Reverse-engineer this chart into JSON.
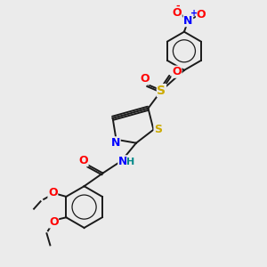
{
  "background_color": "#ebebeb",
  "fig_size": [
    3.0,
    3.0
  ],
  "dpi": 100,
  "atom_colors": {
    "C": "#1a1a1a",
    "N": "#0000ff",
    "O": "#ff0000",
    "S": "#ccaa00",
    "H": "#008888",
    "bond": "#1a1a1a"
  },
  "font_size": 8,
  "lw": 1.4
}
